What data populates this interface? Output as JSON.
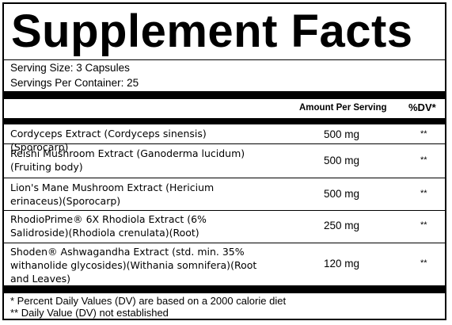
{
  "title": "Supplement Facts",
  "serving_size": "Serving Size: 3 Capsules",
  "servings_per_container": "Servings Per Container: 25",
  "header": {
    "amount_per_serving": "Amount Per Serving",
    "dv": "%DV*"
  },
  "ingredients": [
    {
      "name": "Cordyceps Extract (Cordyceps sinensis)(Sporocarp)",
      "amount": "500 mg",
      "dv": "**"
    },
    {
      "name": "Reishi Mushroom Extract (Ganoderma lucidum)(Fruiting body)",
      "amount": "500 mg",
      "dv": "**"
    },
    {
      "name": "Lion's Mane Mushroom Extract (Hericium erinaceus)(Sporocarp)",
      "amount": "500 mg",
      "dv": "**"
    },
    {
      "name": "RhodioPrime® 6X Rhodiola Extract (6% Salidroside)(Rhodiola crenulata)(Root)",
      "amount": "250 mg",
      "dv": "**"
    },
    {
      "name": "Shoden® Ashwagandha Extract (std. min. 35% withanolide glycosides)(Withania somnifera)(Root and Leaves)",
      "amount": "120 mg",
      "dv": "**"
    }
  ],
  "footnotes": [
    "* Percent Daily Values (DV) are based on a 2000 calorie diet",
    "** Daily Value (DV) not established"
  ]
}
